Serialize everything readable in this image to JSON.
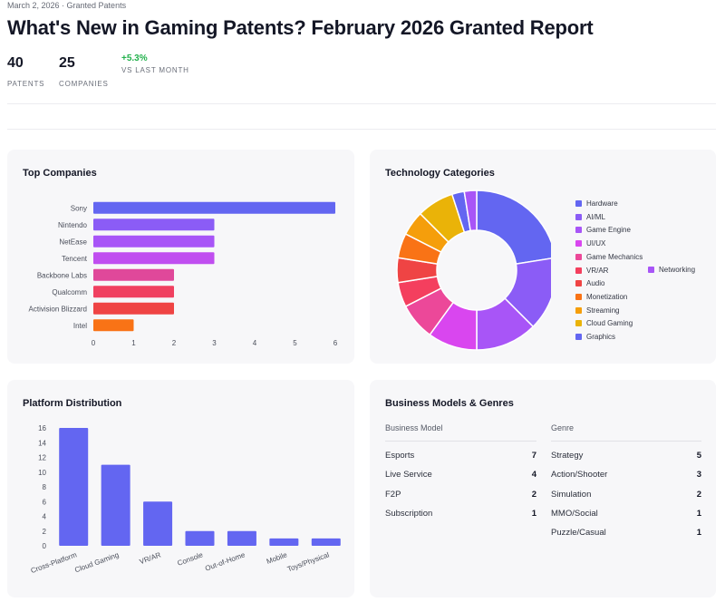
{
  "header": {
    "breadcrumb": "March 2, 2026 · Granted Patents",
    "title": "What's New in Gaming Patents? February 2026 Granted Report"
  },
  "stats": {
    "patents": {
      "value": "40",
      "label": "PATENTS"
    },
    "companies": {
      "value": "25",
      "label": "COMPANIES"
    },
    "change": {
      "value": "+5.3%",
      "label": "VS LAST MONTH"
    }
  },
  "top_companies": {
    "title": "Top Companies",
    "color_gradient": [
      "#6366f1",
      "#a855f7",
      "#d946ef",
      "#ec4899",
      "#ef4444",
      "#f97316"
    ]
  },
  "technology": {
    "title": "Technology Categories",
    "legend": [
      {
        "label": "Hardware",
        "color": "#6366f1"
      },
      {
        "label": "AI/ML",
        "color": "#8b5cf6"
      },
      {
        "label": "Game Engine",
        "color": "#a855f7"
      },
      {
        "label": "UI/UX",
        "color": "#d946ef"
      },
      {
        "label": "Game Mechanics",
        "color": "#ec4899"
      },
      {
        "label": "VR/AR",
        "color": "#f43f5e"
      },
      {
        "label": "Audio",
        "color": "#ef4444"
      },
      {
        "label": "Monetization",
        "color": "#f97316"
      },
      {
        "label": "Streaming",
        "color": "#f59e0b"
      },
      {
        "label": "Cloud Gaming",
        "color": "#eab308"
      },
      {
        "label": "Graphics",
        "color": "#6366f1"
      },
      {
        "label": "Networking",
        "color": "#a855f7"
      }
    ]
  },
  "platform": {
    "title": "Platform Distribution"
  },
  "business": {
    "title": "Business Models & Genres",
    "business_model": {
      "heading": "Business Model",
      "rows": [
        {
          "label": "Esports",
          "value": "7"
        },
        {
          "label": "Live Service",
          "value": "4"
        },
        {
          "label": "F2P",
          "value": "2"
        },
        {
          "label": "Subscription",
          "value": "1"
        }
      ]
    },
    "genre": {
      "heading": "Genre",
      "rows": [
        {
          "label": "Strategy",
          "value": "5"
        },
        {
          "label": "Action/Shooter",
          "value": "3"
        },
        {
          "label": "Simulation",
          "value": "2"
        },
        {
          "label": "MMO/Social",
          "value": "1"
        },
        {
          "label": "Puzzle/Casual",
          "value": "1"
        }
      ]
    }
  },
  "chart_data": [
    {
      "type": "bar",
      "orientation": "horizontal",
      "title": "Top Companies",
      "categories": [
        "Sony",
        "Nintendo",
        "NetEase",
        "Tencent",
        "Backbone Labs",
        "Qualcomm",
        "Activision Blizzard",
        "Intel"
      ],
      "values": [
        6,
        3,
        3,
        3,
        2,
        2,
        2,
        1
      ],
      "xlim": [
        0,
        6
      ],
      "xticks": [
        0,
        1,
        2,
        3,
        4,
        5,
        6
      ],
      "grid": false,
      "colors": [
        "#6366f1",
        "#8b5cf6",
        "#a855f7",
        "#c04ef0",
        "#e0489a",
        "#f04060",
        "#ef4444",
        "#f97316"
      ]
    },
    {
      "type": "pie",
      "donut": true,
      "title": "Technology Categories",
      "labels": [
        "Hardware",
        "AI/ML",
        "Game Engine",
        "UI/UX",
        "Game Mechanics",
        "VR/AR",
        "Audio",
        "Monetization",
        "Streaming",
        "Cloud Gaming",
        "Graphics",
        "Networking"
      ],
      "values": [
        9,
        6,
        5,
        4,
        3,
        2,
        2,
        2,
        2,
        3,
        1,
        1
      ],
      "colors": [
        "#6366f1",
        "#8b5cf6",
        "#a855f7",
        "#d946ef",
        "#ec4899",
        "#f43f5e",
        "#ef4444",
        "#f97316",
        "#f59e0b",
        "#eab308",
        "#6366f1",
        "#a855f7"
      ],
      "legend": "right"
    },
    {
      "type": "bar",
      "title": "Platform Distribution",
      "categories": [
        "Cross-Platform",
        "Cloud Gaming",
        "VR/AR",
        "Console",
        "Out-of-Home",
        "Mobile",
        "Toys/Physical"
      ],
      "values": [
        16,
        11,
        6,
        2,
        2,
        1,
        1
      ],
      "ylim": [
        0,
        16
      ],
      "yticks": [
        0,
        2,
        4,
        6,
        8,
        10,
        12,
        14,
        16
      ],
      "grid": false,
      "color": "#6366f1"
    }
  ]
}
